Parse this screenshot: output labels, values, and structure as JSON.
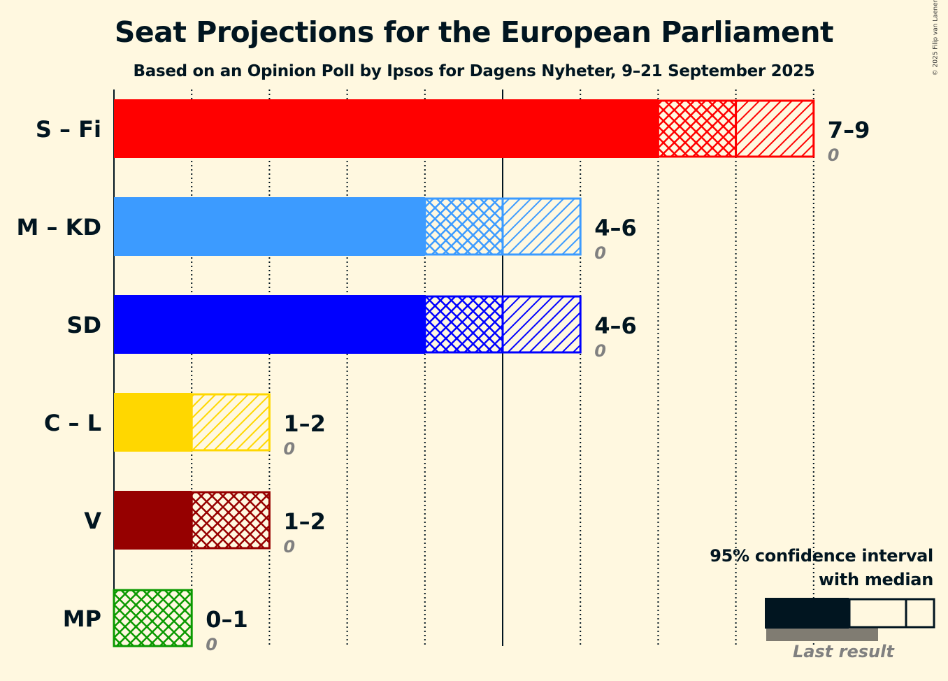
{
  "chart_data": {
    "type": "bar",
    "orientation": "horizontal",
    "title": "Seat Projections for the European Parliament",
    "subtitle": "Based on an Opinion Poll by Ipsos for Dagens Nyheter, 9–21 September 2025",
    "xlim": [
      0,
      9
    ],
    "major_gridlines": [
      0,
      5
    ],
    "minor_gridlines": [
      1,
      2,
      3,
      4,
      6,
      7,
      8,
      9
    ],
    "categories": [
      "S – Fi",
      "M – KD",
      "SD",
      "C – L",
      "V",
      "MP"
    ],
    "series": [
      {
        "party": "S – Fi",
        "color": "#FF0000",
        "ci_low": 7,
        "median": 8,
        "ci_high": 9,
        "range_label": "7–9",
        "last_result": 0,
        "last_result_label": "0"
      },
      {
        "party": "M – KD",
        "color": "#3C9BFF",
        "ci_low": 4,
        "median": 5,
        "ci_high": 6,
        "range_label": "4–6",
        "last_result": 0,
        "last_result_label": "0"
      },
      {
        "party": "SD",
        "color": "#0000FF",
        "ci_low": 4,
        "median": 5,
        "ci_high": 6,
        "range_label": "4–6",
        "last_result": 0,
        "last_result_label": "0"
      },
      {
        "party": "C – L",
        "color": "#FFD700",
        "ci_low": 1,
        "median": 1,
        "ci_high": 2,
        "range_label": "1–2",
        "last_result": 0,
        "last_result_label": "0"
      },
      {
        "party": "V",
        "color": "#960000",
        "ci_low": 1,
        "median": 2,
        "ci_high": 2,
        "range_label": "1–2",
        "last_result": 0,
        "last_result_label": "0"
      },
      {
        "party": "MP",
        "color": "#0A9900",
        "ci_low": 0,
        "median": 1,
        "ci_high": 1,
        "range_label": "0–1",
        "last_result": 0,
        "last_result_label": "0"
      }
    ],
    "legend": {
      "title_line1": "95% confidence interval",
      "title_line2": "with median",
      "last_result_label": "Last result",
      "placement": "bottom-right"
    }
  },
  "copyright": "© 2025 Filip van Laenen",
  "colors": {
    "background": "#FFF8E0",
    "text": "#011520",
    "last_result_text": "#808080",
    "last_result_bar": "#807C72"
  }
}
